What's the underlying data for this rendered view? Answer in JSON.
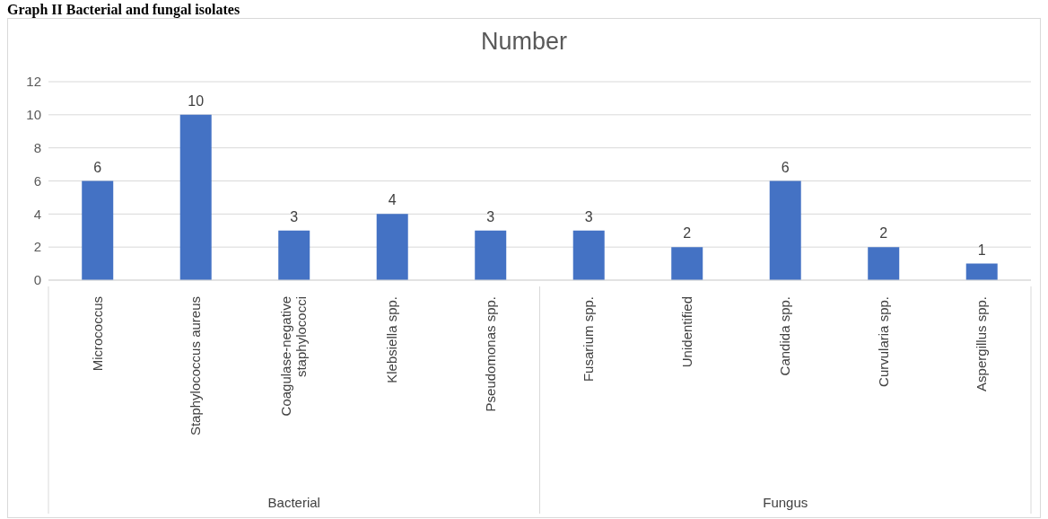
{
  "chart_data": {
    "type": "bar",
    "title": "Graph II Bacterial and fungal isolates",
    "subtitle": "Number",
    "categories": [
      "Micrococcus",
      "Staphylococcus aureus",
      "Coagulase-negative staphylococci",
      "Klebsiella spp.",
      "Pseudomonas spp.",
      "Fusarium spp.",
      "Unidentified",
      "Candida spp.",
      "Curvularia spp.",
      "Aspergillus spp."
    ],
    "values": [
      6,
      10,
      3,
      4,
      3,
      3,
      2,
      6,
      2,
      1
    ],
    "color": "#4472c4",
    "ylim": [
      0,
      12
    ],
    "yticks": [
      0,
      2,
      4,
      6,
      8,
      10,
      12
    ],
    "grid": "y",
    "data_labels": true,
    "annotations": [
      "Bacterial",
      "Fungus"
    ]
  }
}
